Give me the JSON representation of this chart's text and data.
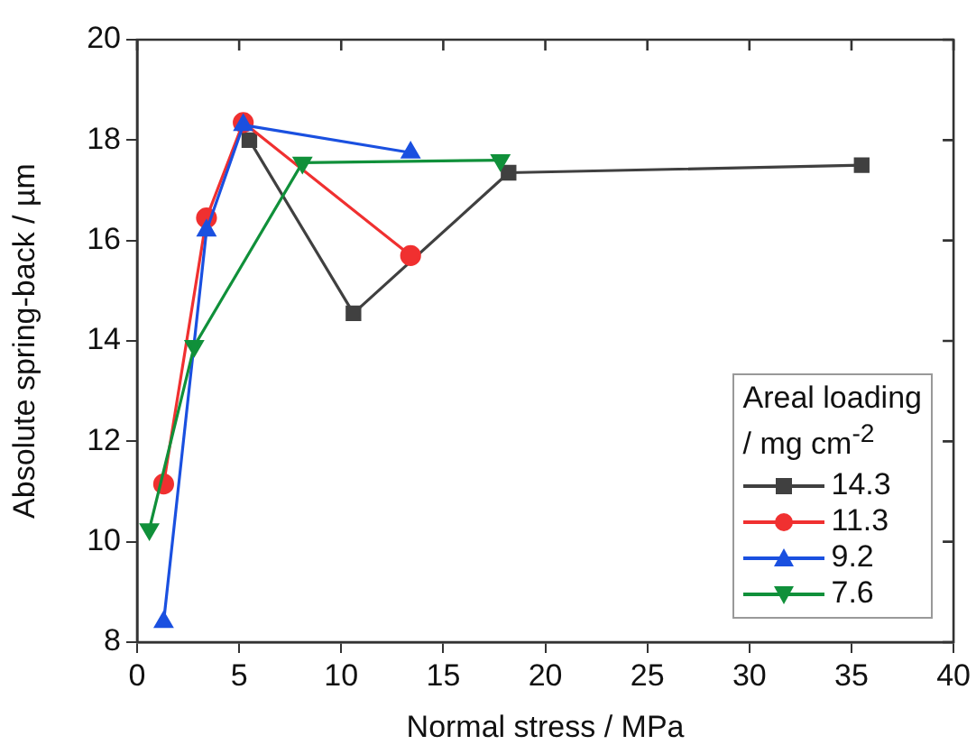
{
  "chart_data": {
    "type": "line",
    "xlabel": "Normal stress / MPa",
    "ylabel": "Absolute spring-back / µm",
    "legend_title": "Areal loading / mg cm$^{-2}$",
    "xlim": [
      0,
      40
    ],
    "xticks": [
      0,
      5,
      10,
      15,
      20,
      25,
      30,
      35,
      40
    ],
    "ylim": [
      8,
      20
    ],
    "yticks": [
      8,
      10,
      12,
      14,
      16,
      18,
      20
    ],
    "grid": false,
    "legend": "bottom right",
    "line_style": "solid",
    "series": [
      {
        "name": "14.3",
        "color": "#404040",
        "marker": "square",
        "x": [
          5.5,
          10.6,
          18.2,
          35.5
        ],
        "values": [
          18.0,
          14.55,
          17.35,
          17.5
        ]
      },
      {
        "name": "11.3",
        "color": "#f03030",
        "marker": "circle",
        "x": [
          1.3,
          3.4,
          5.2,
          13.4
        ],
        "values": [
          11.15,
          16.45,
          18.35,
          15.7
        ]
      },
      {
        "name": "9.2",
        "color": "#1a50e0",
        "marker": "triangle",
        "x": [
          1.3,
          3.4,
          5.2,
          13.4
        ],
        "values": [
          8.4,
          16.2,
          18.3,
          17.75
        ]
      },
      {
        "name": "7.6",
        "color": "#10903a",
        "marker": "triangle-down",
        "x": [
          0.6,
          2.8,
          8.1,
          17.8
        ],
        "values": [
          10.25,
          13.9,
          17.55,
          17.6
        ]
      }
    ]
  }
}
